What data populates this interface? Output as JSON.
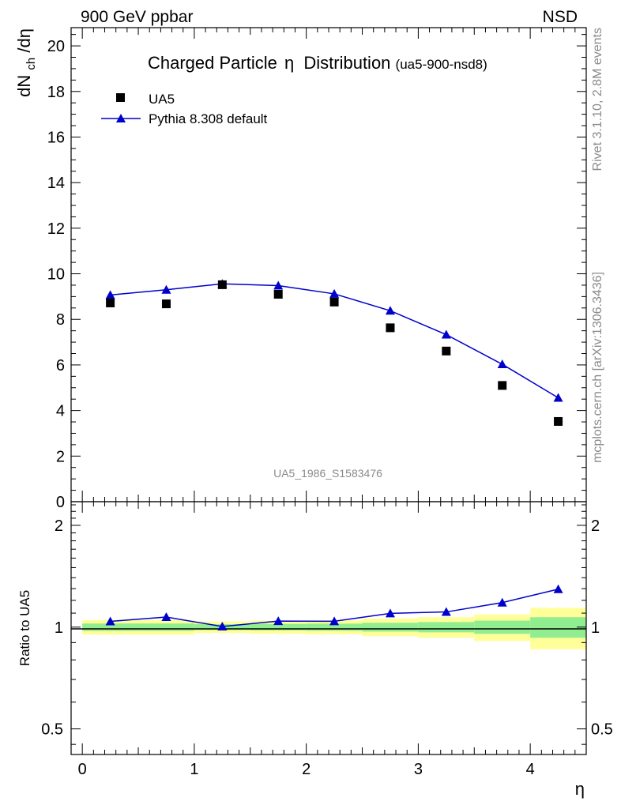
{
  "header": {
    "left": "900 GeV ppbar",
    "right": "NSD"
  },
  "side_labels": {
    "rivet": "Rivet 3.1.10,  2.8M events",
    "mcplots": "mcplots.cern.ch [arXiv:1306.3436]"
  },
  "colors": {
    "pythia": "#0000cc",
    "data": "#000000",
    "band_inner": "#90ee90",
    "band_outer": "#ffff99"
  },
  "chart_data": [
    {
      "type": "scatter",
      "panel": "main",
      "title": "Charged Particle",
      "title_symbol": "η",
      "title_suffix": "Distribution",
      "subtitle": "(ua5-900-nsd8)",
      "watermark": "UA5_1986_S1583476",
      "ylabel": "dN",
      "ylabel_sub": "ch",
      "ylabel_tail": "/dη",
      "xlim": [
        -0.1,
        4.5
      ],
      "ylim": [
        0,
        20.8
      ],
      "yticks": [
        "0",
        "2",
        "4",
        "6",
        "8",
        "10",
        "12",
        "14",
        "16",
        "18",
        "20"
      ],
      "legend_position": "top-left",
      "series": [
        {
          "name": "UA5",
          "marker": "square",
          "x": [
            0.25,
            0.75,
            1.25,
            1.75,
            2.25,
            2.75,
            3.25,
            3.75,
            4.25
          ],
          "y": [
            8.72,
            8.68,
            9.52,
            9.1,
            8.76,
            7.63,
            6.61,
            5.1,
            3.52
          ]
        },
        {
          "name": "Pythia 8.308 default",
          "marker": "triangle",
          "x": [
            0.25,
            0.75,
            1.25,
            1.75,
            2.25,
            2.75,
            3.25,
            3.75,
            4.25
          ],
          "y": [
            9.07,
            9.3,
            9.56,
            9.48,
            9.12,
            8.38,
            7.33,
            6.03,
            4.56
          ]
        }
      ]
    },
    {
      "type": "line",
      "panel": "ratio",
      "ylabel": "Ratio to UA5",
      "xlabel": "η",
      "xlim": [
        -0.1,
        4.5
      ],
      "ylim": [
        0.42,
        2.35
      ],
      "y_scale": "log",
      "xticks": [
        "0",
        "1",
        "2",
        "3",
        "4"
      ],
      "yticks": [
        "0.5",
        "1",
        "2"
      ],
      "bands": {
        "x_edges": [
          0,
          0.5,
          1,
          1.5,
          2,
          2.5,
          3,
          3.5,
          4,
          4.5
        ],
        "inner": [
          0.025,
          0.025,
          0.02,
          0.022,
          0.024,
          0.03,
          0.035,
          0.045,
          0.07
        ],
        "outer": [
          0.05,
          0.05,
          0.04,
          0.045,
          0.048,
          0.06,
          0.07,
          0.09,
          0.14
        ]
      },
      "series": [
        {
          "name": "Pythia 8.308 default",
          "x": [
            0.25,
            0.75,
            1.25,
            1.75,
            2.25,
            2.75,
            3.25,
            3.75,
            4.25
          ],
          "y": [
            1.04,
            1.071,
            1.004,
            1.042,
            1.041,
            1.098,
            1.109,
            1.182,
            1.295
          ]
        }
      ]
    }
  ]
}
